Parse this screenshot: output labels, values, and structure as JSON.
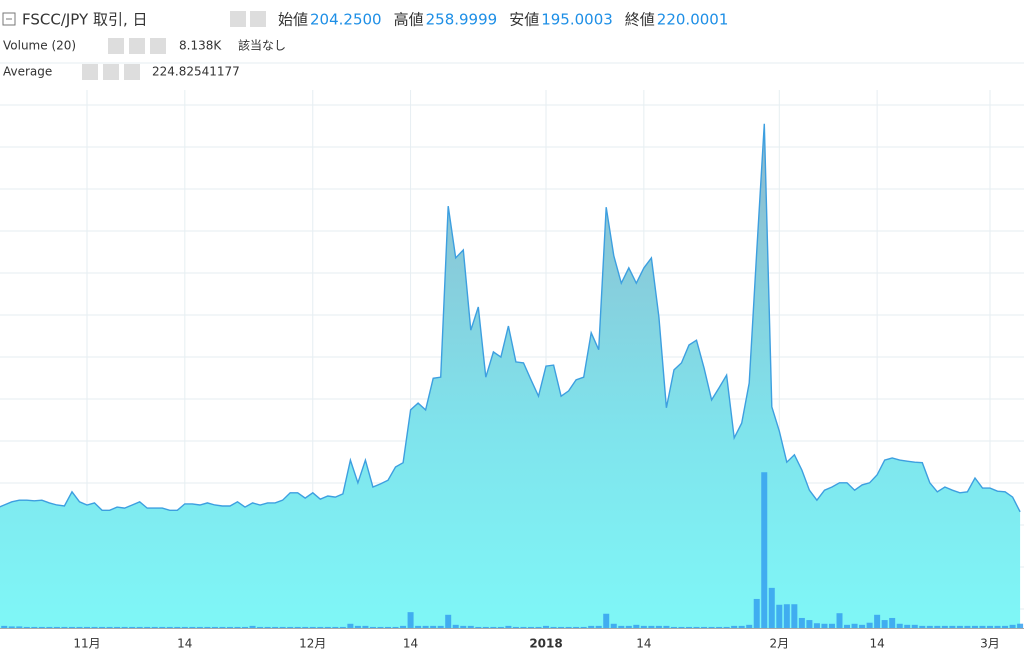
{
  "chart_data": {
    "type": "area",
    "title": "FSCC/JPY 取引, 日",
    "ohlc": [
      {
        "label": "始値",
        "value": "204.2500"
      },
      {
        "label": "高値",
        "value": "258.9999"
      },
      {
        "label": "安値",
        "value": "195.0003"
      },
      {
        "label": "終値",
        "value": "220.0001"
      }
    ],
    "volume_legend": {
      "name": "Volume (20)",
      "value": "8.138K",
      "note": "該当なし"
    },
    "average_legend": {
      "name": "Average",
      "value": "224.82541177"
    },
    "categories": [
      null,
      null,
      null,
      null,
      null,
      null,
      null,
      null,
      null,
      null,
      null,
      null,
      "11月",
      null,
      null,
      null,
      null,
      null,
      null,
      null,
      null,
      null,
      null,
      null,
      null,
      "14",
      null,
      null,
      null,
      null,
      null,
      null,
      null,
      null,
      null,
      null,
      null,
      null,
      null,
      null,
      null,
      null,
      "12月",
      null,
      null,
      null,
      null,
      null,
      null,
      null,
      null,
      null,
      null,
      null,
      null,
      "14",
      null,
      null,
      null,
      null,
      null,
      null,
      null,
      null,
      null,
      null,
      null,
      null,
      null,
      null,
      null,
      null,
      null,
      "2018",
      null,
      null,
      null,
      null,
      null,
      null,
      null,
      null,
      null,
      null,
      null,
      null,
      "14",
      null,
      null,
      null,
      null,
      null,
      null,
      null,
      null,
      null,
      null,
      null,
      null,
      null,
      null,
      null,
      null,
      null,
      "2月",
      null,
      null,
      null,
      null,
      null,
      null,
      null,
      null,
      null,
      null,
      null,
      null,
      "14",
      null,
      null,
      null,
      null,
      null,
      null,
      null,
      null,
      null,
      null,
      null,
      null,
      null,
      null,
      "3月",
      null,
      null,
      null,
      null
    ],
    "series": [
      {
        "color": "#3d9fe0",
        "values": [
          227,
          233,
          239,
          242,
          242,
          241,
          242,
          237,
          233,
          231,
          258,
          239,
          233,
          237,
          223,
          223,
          229,
          227,
          233,
          239,
          227,
          227,
          227,
          223,
          223,
          235,
          235,
          233,
          237,
          233,
          231,
          231,
          239,
          229,
          237,
          233,
          237,
          237,
          242,
          256,
          256,
          246,
          256,
          244,
          250,
          248,
          254,
          318,
          275,
          318,
          267,
          273,
          280,
          305,
          313,
          413,
          426,
          413,
          473,
          475,
          799,
          701,
          716,
          564,
          608,
          475,
          523,
          513,
          572,
          504,
          502,
          470,
          439,
          496,
          498,
          439,
          449,
          470,
          475,
          559,
          527,
          797,
          705,
          653,
          682,
          653,
          682,
          701,
          589,
          417,
          489,
          502,
          536,
          545,
          492,
          432,
          455,
          479,
          360,
          388,
          464,
          712,
          955,
          419,
          373,
          314,
          328,
          299,
          261,
          242,
          261,
          267,
          275,
          275,
          261,
          271,
          275,
          290,
          318,
          322,
          318,
          316,
          314,
          313,
          275,
          258,
          267,
          261,
          256,
          258,
          284,
          265,
          265,
          259,
          258,
          248,
          220
        ]
      },
      {
        "type": "bar",
        "axis": "y2",
        "color": "#35a0ee",
        "values": [
          4,
          4,
          3,
          3,
          2,
          2,
          2,
          2,
          2,
          2,
          2,
          2,
          2,
          2,
          2,
          2,
          2,
          2,
          2,
          2,
          2,
          2,
          2,
          2,
          2,
          2,
          2,
          2,
          2,
          2,
          2,
          2,
          2,
          2,
          4,
          2,
          2,
          2,
          2,
          2,
          2,
          2,
          2,
          2,
          2,
          2,
          2,
          8,
          4,
          4,
          2,
          2,
          2,
          2,
          4,
          30,
          4,
          4,
          4,
          4,
          25,
          6,
          4,
          4,
          2,
          2,
          2,
          2,
          4,
          2,
          2,
          2,
          2,
          4,
          2,
          2,
          2,
          2,
          2,
          4,
          4,
          27,
          8,
          4,
          4,
          6,
          4,
          4,
          4,
          4,
          2,
          2,
          2,
          2,
          2,
          2,
          2,
          2,
          4,
          4,
          6,
          55,
          295,
          76,
          44,
          45,
          45,
          19,
          15,
          9,
          8,
          8,
          28,
          6,
          8,
          6,
          10,
          25,
          15,
          19,
          8,
          6,
          6,
          4,
          4,
          4,
          4,
          4,
          4,
          4,
          4,
          4,
          4,
          4,
          4,
          6,
          8.138
        ]
      }
    ],
    "ylim": [
      0,
      1000
    ],
    "y2lim": [
      0,
      1000
    ],
    "grid": true
  }
}
